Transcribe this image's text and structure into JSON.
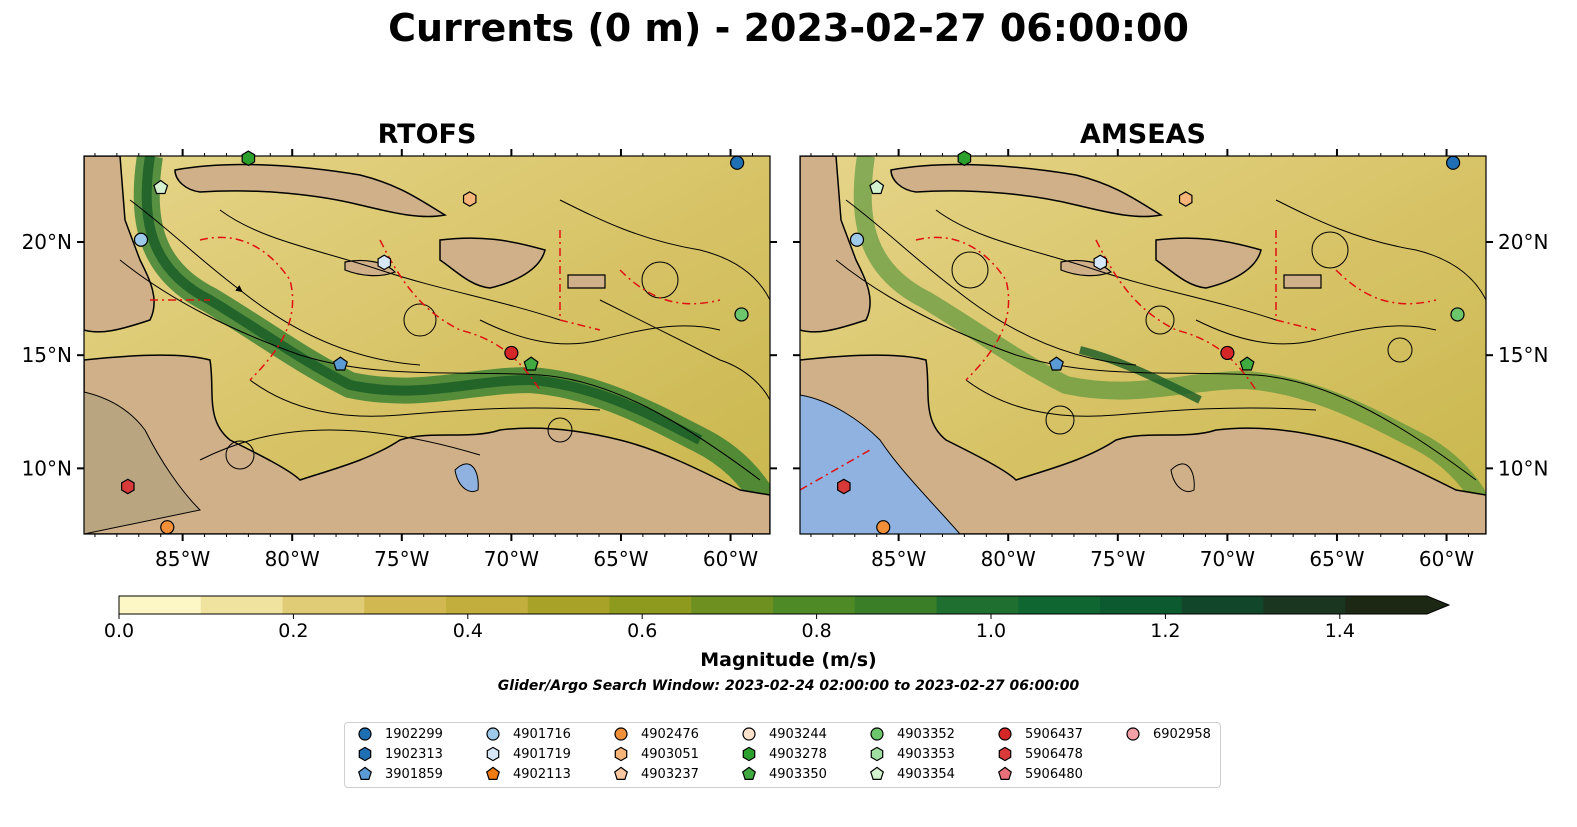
{
  "title": "Currents (0 m) - 2023-02-27 06:00:00",
  "panels": [
    {
      "title": "RTOFS"
    },
    {
      "title": "AMSEAS"
    }
  ],
  "axes": {
    "x_ticks": [
      "85°W",
      "80°W",
      "75°W",
      "70°W",
      "65°W",
      "60°W"
    ],
    "y_ticks": [
      "20°N",
      "15°N",
      "10°N"
    ],
    "lon_range": [
      -89.5,
      -58.2
    ],
    "lat_range": [
      7.1,
      23.8
    ]
  },
  "colorbar": {
    "label": "Magnitude (m/s)",
    "tick_labels": [
      "0.0",
      "0.2",
      "0.4",
      "0.6",
      "0.8",
      "1.0",
      "1.2",
      "1.4"
    ],
    "range": [
      0.0,
      1.5
    ],
    "extend": "max",
    "colors": [
      "#fcf7c4",
      "#f0e3a0",
      "#e0cb76",
      "#d2b850",
      "#c2ae3c",
      "#a9a228",
      "#8e9a1e",
      "#6e9020",
      "#4e8a26",
      "#3b7e28",
      "#1f7030",
      "#0f6630",
      "#0c5a30",
      "#12462a",
      "#1a3520",
      "#1c2814"
    ]
  },
  "search_window": "Glider/Argo Search Window: 2023-02-24 02:00:00 to 2023-02-27 06:00:00",
  "legend": [
    {
      "id": "1902299",
      "shape": "circle",
      "color": "#1f6fb5"
    },
    {
      "id": "1902313",
      "shape": "hexagon",
      "color": "#1f6fb5"
    },
    {
      "id": "3901859",
      "shape": "pentagon",
      "color": "#5b9bd5"
    },
    {
      "id": "4901716",
      "shape": "circle",
      "color": "#9ecae9"
    },
    {
      "id": "4901719",
      "shape": "hexagon",
      "color": "#d6e8f7"
    },
    {
      "id": "4902113",
      "shape": "pentagon",
      "color": "#f07b10"
    },
    {
      "id": "4902476",
      "shape": "circle",
      "color": "#f2903a"
    },
    {
      "id": "4903051",
      "shape": "hexagon",
      "color": "#f7b579"
    },
    {
      "id": "4903237",
      "shape": "pentagon",
      "color": "#fbc8a0"
    },
    {
      "id": "4903244",
      "shape": "circle",
      "color": "#fde2cc"
    },
    {
      "id": "4903278",
      "shape": "hexagon",
      "color": "#2ca02c"
    },
    {
      "id": "4903350",
      "shape": "pentagon",
      "color": "#40aa40"
    },
    {
      "id": "4903352",
      "shape": "circle",
      "color": "#6cc66c"
    },
    {
      "id": "4903353",
      "shape": "hexagon",
      "color": "#a1dea1"
    },
    {
      "id": "4903354",
      "shape": "pentagon",
      "color": "#d4f2d0"
    },
    {
      "id": "5906437",
      "shape": "circle",
      "color": "#d62728"
    },
    {
      "id": "5906478",
      "shape": "hexagon",
      "color": "#d83a3a"
    },
    {
      "id": "5906480",
      "shape": "pentagon",
      "color": "#e8707a"
    },
    {
      "id": "6902958",
      "shape": "circle",
      "color": "#f4a0a6"
    }
  ],
  "markers": [
    {
      "id": "1902299",
      "lon": -59.7,
      "lat": 23.5
    },
    {
      "id": "4903278",
      "lon": -82.0,
      "lat": 23.7
    },
    {
      "id": "4903354",
      "lon": -86.0,
      "lat": 22.4
    },
    {
      "id": "4903051",
      "lon": -71.9,
      "lat": 21.9
    },
    {
      "id": "4901716",
      "lon": -86.9,
      "lat": 20.1
    },
    {
      "id": "4901719",
      "lon": -75.8,
      "lat": 19.1
    },
    {
      "id": "4903352",
      "lon": -59.5,
      "lat": 16.8
    },
    {
      "id": "5906437",
      "lon": -70.0,
      "lat": 15.1
    },
    {
      "id": "4903350",
      "lon": -69.1,
      "lat": 14.6
    },
    {
      "id": "3901859",
      "lon": -77.8,
      "lat": 14.6
    },
    {
      "id": "5906478",
      "lon": -87.5,
      "lat": 9.2
    },
    {
      "id": "4902476",
      "lon": -85.7,
      "lat": 7.4
    }
  ]
}
